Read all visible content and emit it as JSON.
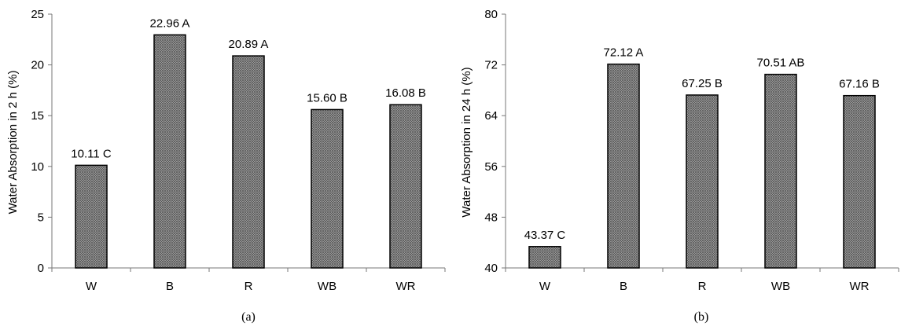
{
  "chart_data": [
    {
      "type": "bar",
      "caption": "(a)",
      "ylabel": "Water Absorption in 2 h (%)",
      "categories": [
        "W",
        "B",
        "R",
        "WB",
        "WR"
      ],
      "values": [
        10.11,
        22.96,
        20.89,
        15.6,
        16.08
      ],
      "data_labels": [
        "10.11 C",
        "22.96 A",
        "20.89 A",
        "15.60 B",
        "16.08 B"
      ],
      "ylim": [
        0,
        25
      ],
      "yticks": [
        "0",
        "5",
        "10",
        "15",
        "20",
        "25"
      ],
      "grid": false,
      "bar_fill": "crosshatch gray",
      "colors": {
        "bar": "#8a8a8a",
        "bar_line": "#000000",
        "axis": "#777777"
      }
    },
    {
      "type": "bar",
      "caption": "(b)",
      "ylabel": "Water Absorption in 24 h (%)",
      "categories": [
        "W",
        "B",
        "R",
        "WB",
        "WR"
      ],
      "values": [
        43.37,
        72.12,
        67.25,
        70.51,
        67.16
      ],
      "data_labels": [
        "43.37 C",
        "72.12 A",
        "67.25 B",
        "70.51 AB",
        "67.16 B"
      ],
      "ylim": [
        40,
        80
      ],
      "yticks": [
        "40",
        "48",
        "56",
        "64",
        "72",
        "80"
      ],
      "grid": false,
      "bar_fill": "crosshatch gray",
      "colors": {
        "bar": "#8a8a8a",
        "bar_line": "#000000",
        "axis": "#777777"
      }
    }
  ]
}
